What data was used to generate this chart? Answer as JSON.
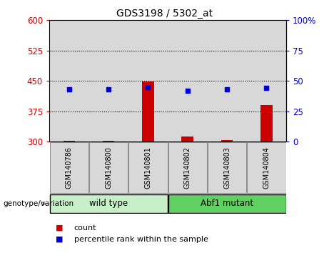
{
  "title": "GDS3198 / 5302_at",
  "samples": [
    "GSM140786",
    "GSM140800",
    "GSM140801",
    "GSM140802",
    "GSM140803",
    "GSM140804"
  ],
  "count_values": [
    303,
    303,
    448,
    313,
    304,
    390
  ],
  "percentile_values": [
    43,
    43,
    45,
    42,
    43,
    44
  ],
  "left_ylim": [
    300,
    600
  ],
  "left_yticks": [
    300,
    375,
    450,
    525,
    600
  ],
  "right_ylim": [
    0,
    100
  ],
  "right_yticks": [
    0,
    25,
    50,
    75,
    100
  ],
  "right_yticklabels": [
    "0",
    "25",
    "50",
    "75",
    "100%"
  ],
  "bar_color": "#cc0000",
  "dot_color": "#0000cc",
  "left_tick_color": "#cc0000",
  "right_tick_color": "#0000cc",
  "wildtype_color": "#c8f0c8",
  "mutant_color": "#60d060",
  "group_label_0": "wild type",
  "group_label_1": "Abf1 mutant",
  "xlabel_area": "genotype/variation",
  "legend_count_label": "count",
  "legend_percentile_label": "percentile rank within the sample",
  "col_bg_color": "#d8d8d8",
  "fig_bg": "#ffffff",
  "plot_bg": "#ffffff"
}
